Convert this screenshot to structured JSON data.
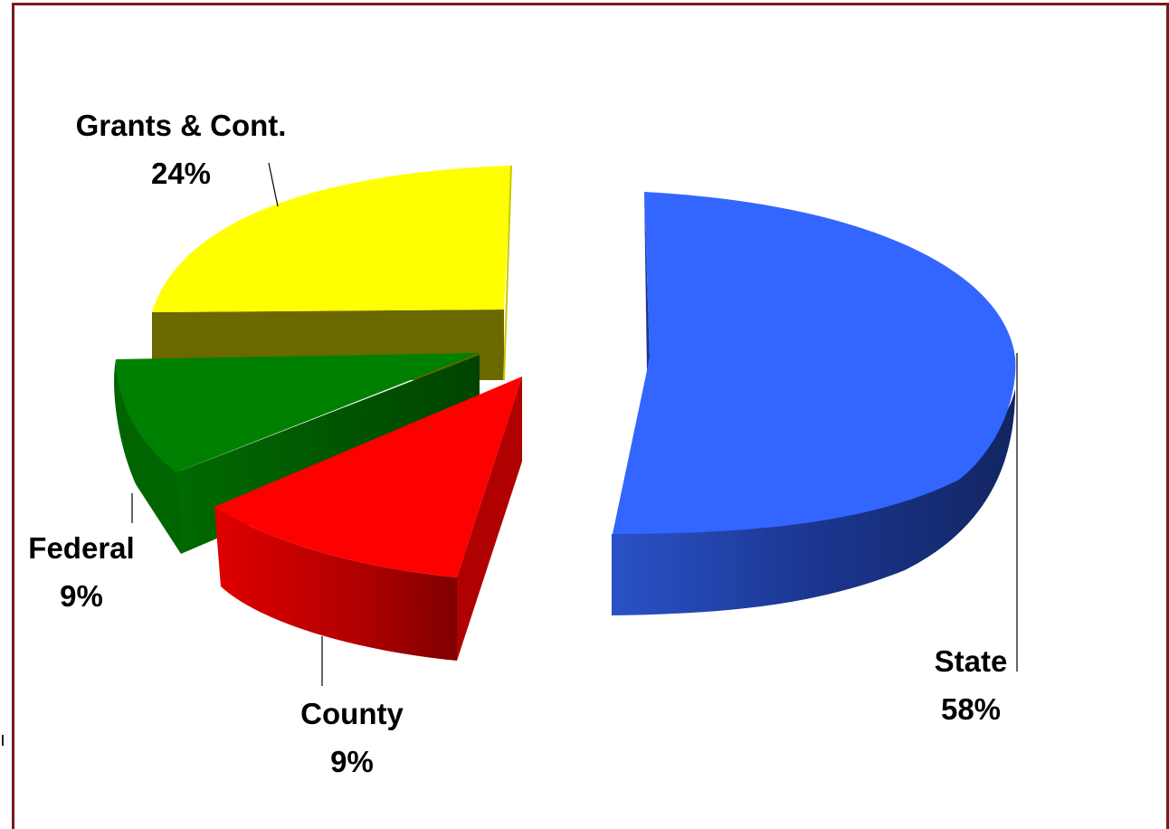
{
  "chart_data": {
    "type": "pie",
    "style": "3d-exploded",
    "slices": [
      {
        "name": "State",
        "percent": "58%",
        "value": 58,
        "color": "#3366ff"
      },
      {
        "name": "County",
        "percent": "9%",
        "value": 9,
        "color": "#ff0000"
      },
      {
        "name": "Federal",
        "percent": "9%",
        "value": 9,
        "color": "#008000"
      },
      {
        "name": "Grants & Cont.",
        "percent": "24%",
        "value": 24,
        "color": "#ffff00"
      }
    ],
    "frame_color": "#7a1a1a"
  }
}
